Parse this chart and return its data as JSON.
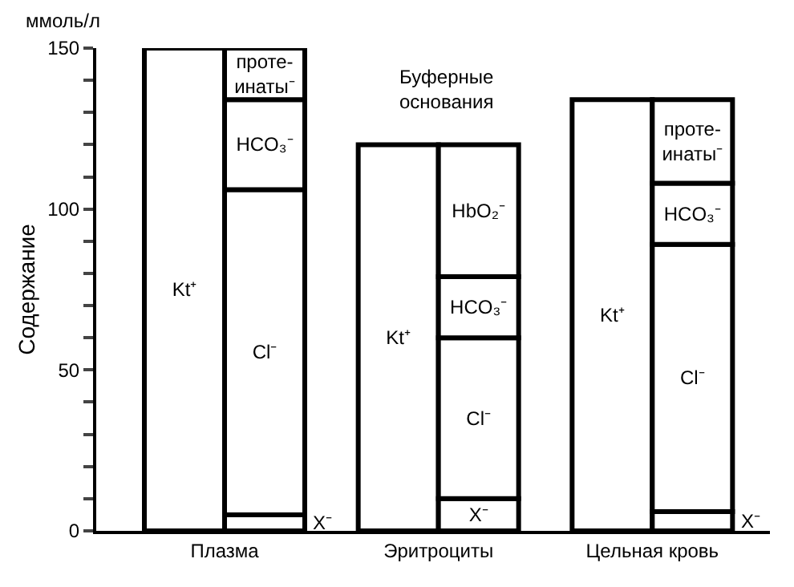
{
  "chart_data": {
    "type": "bar",
    "ylabel": "Содержание",
    "categories": [
      "Плазма",
      "Эритроциты",
      "Цельная кровь"
    ],
    "series": [
      {
        "name": "Kt⁺",
        "color": "#ffffff",
        "values": [
          150,
          120,
          134
        ]
      },
      {
        "name": "X⁻",
        "color": "#ffffff",
        "values": [
          5,
          10,
          6
        ],
        "base": [
          0,
          0,
          0
        ]
      },
      {
        "name": "Cl⁻",
        "color": "#ffffff",
        "values": [
          101,
          50,
          83
        ],
        "base": [
          5,
          10,
          6
        ]
      },
      {
        "name": "HCO₃⁻",
        "color": "#ffffff",
        "values": [
          28,
          19,
          19
        ],
        "base": [
          106,
          60,
          89
        ]
      },
      {
        "name": "проте-\nинаты⁻",
        "color": "#ffffff",
        "values": [
          16,
          null,
          26
        ],
        "base": [
          134,
          null,
          108
        ]
      },
      {
        "name": "HbO₂⁻",
        "color": "#ffffff",
        "values": [
          null,
          41,
          null
        ],
        "base": [
          null,
          79,
          null
        ]
      }
    ],
    "ylim": [
      0,
      150
    ],
    "yticks": [
      0,
      {
        "value": 10,
        "label": null
      },
      {
        "value": 20,
        "label": null
      },
      {
        "value": 30,
        "label": null
      },
      {
        "value": 40,
        "label": null
      },
      50,
      {
        "value": 60,
        "label": null
      },
      {
        "value": 70,
        "label": null
      },
      {
        "value": 80,
        "label": null
      },
      {
        "value": 90,
        "label": null
      },
      100,
      {
        "value": 110,
        "label": null
      },
      {
        "value": 120,
        "label": null
      },
      {
        "value": 130,
        "label": null
      },
      {
        "value": 140,
        "label": null
      },
      150
    ],
    "annotations": [
      "ммоль/л",
      "Буферные\nоснования"
    ],
    "grid": false,
    "legend": false
  }
}
